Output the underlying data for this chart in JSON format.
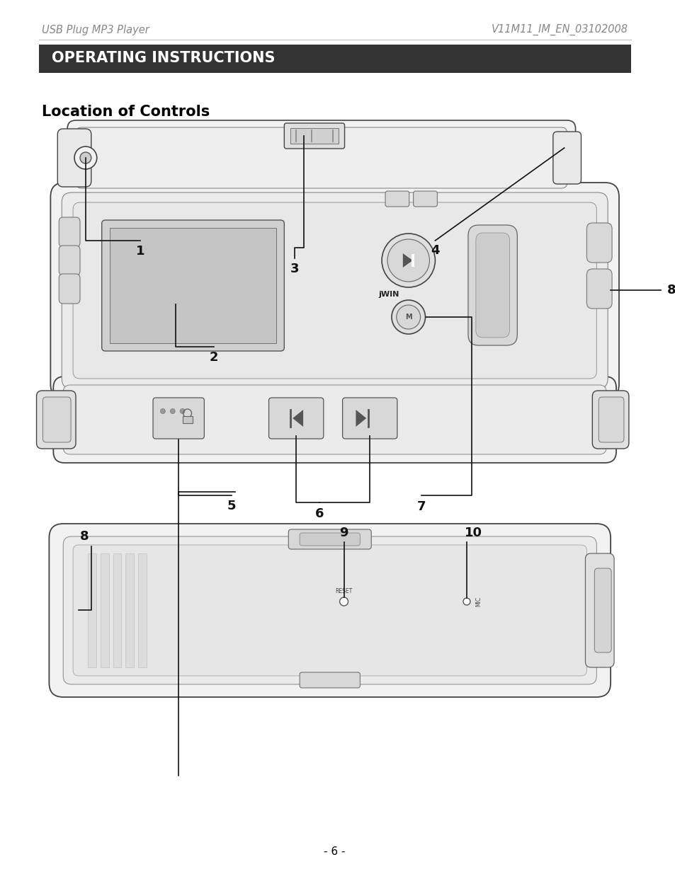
{
  "page_background": "#ffffff",
  "header_left": "USB Plug MP3 Player",
  "header_right": "V11M11_IM_EN_03102008",
  "header_color": "#888888",
  "header_line_color": "#bbbbbb",
  "banner_text": "OPERATING INSTRUCTIONS",
  "banner_bg": "#333333",
  "banner_fg": "#ffffff",
  "section_title": "Location of Controls",
  "footer_text": "- 6 -",
  "lc": "#111111",
  "lw": 1.0,
  "device_stroke": "#444444",
  "device_lw": 1.0
}
